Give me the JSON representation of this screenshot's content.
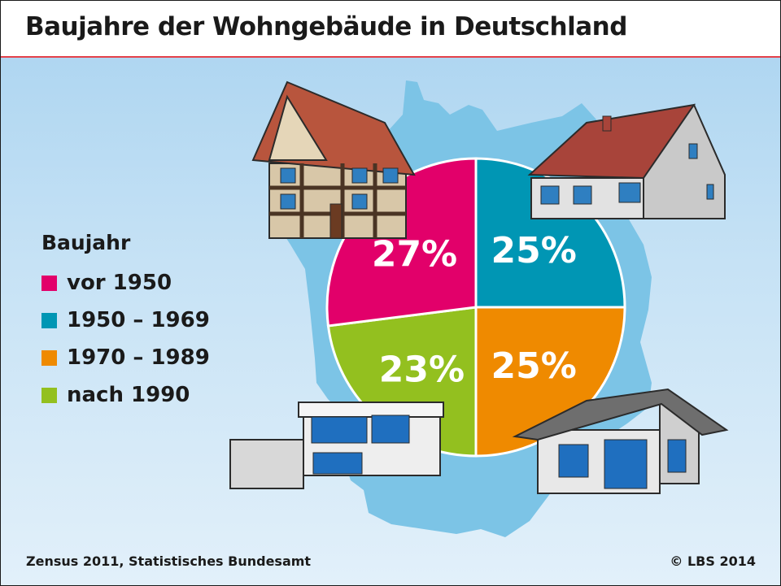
{
  "title": "Baujahre der Wohngebäude in Deutschland",
  "legend": {
    "title": "Baujahr",
    "items": [
      {
        "label": "vor 1950",
        "color": "#e2006a"
      },
      {
        "label": "1950 – 1969",
        "color": "#0096b4"
      },
      {
        "label": "1970 – 1989",
        "color": "#ef8a00"
      },
      {
        "label": "nach 1990",
        "color": "#93c01f"
      }
    ]
  },
  "chart_data": {
    "type": "pie",
    "title": "Baujahre der Wohngebäude in Deutschland",
    "legend_title": "Baujahr",
    "legend_position": "left",
    "slices": [
      {
        "label": "vor 1950",
        "value": 27,
        "display": "27%",
        "color": "#e2006a"
      },
      {
        "label": "1950 – 1969",
        "value": 25,
        "display": "25%",
        "color": "#0096b4"
      },
      {
        "label": "1970 – 1989",
        "value": 25,
        "display": "25%",
        "color": "#ef8a00"
      },
      {
        "label": "nach 1990",
        "value": 23,
        "display": "23%",
        "color": "#93c01f"
      }
    ]
  },
  "footer": {
    "source": "Zensus 2011, Statistisches Bundesamt",
    "copyright": "© LBS 2014"
  },
  "colors": {
    "map": "#7cc4e6",
    "header_rule": "#e4414a"
  }
}
